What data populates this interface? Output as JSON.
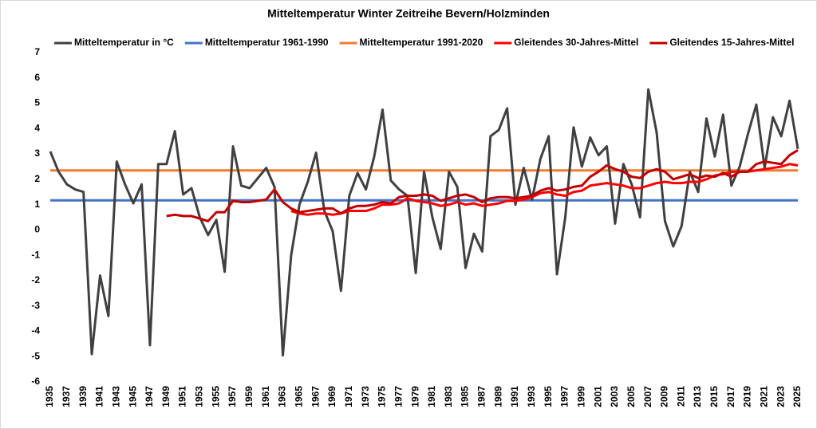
{
  "chart_data": {
    "type": "line",
    "title": "Mitteltemperatur Winter Zeitreihe Bevern/Holzminden",
    "x": [
      1935,
      1936,
      1937,
      1938,
      1939,
      1940,
      1941,
      1942,
      1943,
      1944,
      1945,
      1946,
      1947,
      1948,
      1949,
      1950,
      1951,
      1952,
      1953,
      1954,
      1955,
      1956,
      1957,
      1958,
      1959,
      1960,
      1961,
      1962,
      1963,
      1964,
      1965,
      1966,
      1967,
      1968,
      1969,
      1970,
      1971,
      1972,
      1973,
      1974,
      1975,
      1976,
      1977,
      1978,
      1979,
      1980,
      1981,
      1982,
      1983,
      1984,
      1985,
      1986,
      1987,
      1988,
      1989,
      1990,
      1991,
      1992,
      1993,
      1994,
      1995,
      1996,
      1997,
      1998,
      1999,
      2000,
      2001,
      2002,
      2003,
      2004,
      2005,
      2006,
      2007,
      2008,
      2009,
      2010,
      2011,
      2012,
      2013,
      2014,
      2015,
      2016,
      2017,
      2018,
      2019,
      2020,
      2021,
      2022,
      2023,
      2024,
      2025
    ],
    "xlim": [
      1935,
      2025
    ],
    "xticks": [
      1935,
      1937,
      1939,
      1941,
      1943,
      1945,
      1947,
      1949,
      1951,
      1953,
      1955,
      1957,
      1959,
      1961,
      1963,
      1965,
      1967,
      1969,
      1971,
      1973,
      1975,
      1977,
      1979,
      1981,
      1983,
      1985,
      1987,
      1989,
      1991,
      1993,
      1995,
      1997,
      1999,
      2001,
      2003,
      2005,
      2007,
      2009,
      2011,
      2013,
      2015,
      2017,
      2019,
      2021,
      2023,
      2025
    ],
    "ylim": [
      -6,
      7
    ],
    "yticks": [
      -6,
      -5,
      -4,
      -3,
      -2,
      -1,
      0,
      1,
      2,
      3,
      4,
      5,
      6,
      7
    ],
    "series": [
      {
        "name": "Mitteltemperatur in °C",
        "color": "#404040",
        "values": [
          3.1,
          2.3,
          1.8,
          1.6,
          1.5,
          -4.9,
          -1.8,
          -3.4,
          2.7,
          1.8,
          1.05,
          1.8,
          -4.55,
          2.6,
          2.6,
          3.9,
          1.4,
          1.65,
          0.5,
          -0.2,
          0.4,
          -1.65,
          3.3,
          1.75,
          1.65,
          2.05,
          2.45,
          1.7,
          -4.95,
          -1.0,
          1.0,
          1.9,
          3.05,
          0.75,
          -0.05,
          -2.4,
          1.35,
          2.25,
          1.6,
          2.9,
          4.75,
          1.95,
          1.6,
          1.35,
          -1.7,
          2.3,
          0.5,
          -0.75,
          2.3,
          1.7,
          -1.5,
          -0.15,
          -0.85,
          3.7,
          3.95,
          4.8,
          1.0,
          2.45,
          1.2,
          2.8,
          3.7,
          -1.75,
          0.5,
          4.05,
          2.5,
          3.65,
          2.95,
          3.3,
          0.25,
          2.6,
          1.8,
          0.5,
          5.55,
          3.85,
          0.35,
          -0.65,
          0.15,
          2.3,
          1.5,
          4.4,
          2.9,
          4.55,
          1.75,
          2.5,
          3.8,
          4.95,
          2.45,
          4.45,
          3.7,
          5.1,
          3.2
        ]
      },
      {
        "name": "Mitteltemperatur 1961-1990",
        "color": "#4472c4",
        "value": 1.17
      },
      {
        "name": "Mitteltemperatur 1991-2020",
        "color": "#ed7d31",
        "value": 2.35
      },
      {
        "name": "Gleitendes 30-Jahres-Mittel",
        "color": "#ff0000",
        "values": [
          null,
          null,
          null,
          null,
          null,
          null,
          null,
          null,
          null,
          null,
          null,
          null,
          null,
          null,
          null,
          null,
          null,
          null,
          null,
          null,
          null,
          null,
          null,
          null,
          null,
          null,
          null,
          null,
          null,
          0.75,
          0.65,
          0.6,
          0.65,
          0.65,
          0.6,
          0.65,
          0.75,
          0.75,
          0.75,
          0.85,
          1.0,
          1.0,
          1.05,
          1.25,
          1.15,
          1.1,
          1.05,
          0.95,
          1.0,
          1.1,
          1.0,
          1.05,
          0.95,
          1.0,
          1.05,
          1.15,
          1.15,
          1.2,
          1.3,
          1.45,
          1.5,
          1.4,
          1.35,
          1.5,
          1.55,
          1.75,
          1.8,
          1.85,
          1.8,
          1.75,
          1.65,
          1.65,
          1.75,
          1.85,
          1.9,
          1.85,
          1.85,
          1.9,
          1.9,
          2.0,
          2.15,
          2.2,
          2.3,
          2.3,
          2.3,
          2.35,
          2.4,
          2.45,
          2.5,
          2.6,
          2.55
        ]
      },
      {
        "name": "Gleitendes 15-Jahres-Mittel",
        "color": "#c00000",
        "values": [
          null,
          null,
          null,
          null,
          null,
          null,
          null,
          null,
          null,
          null,
          null,
          null,
          null,
          null,
          0.55,
          0.6,
          0.55,
          0.55,
          0.45,
          0.35,
          0.7,
          0.7,
          1.15,
          1.1,
          1.1,
          1.15,
          1.2,
          1.6,
          1.1,
          0.85,
          0.7,
          0.75,
          0.8,
          0.85,
          0.85,
          0.65,
          0.85,
          0.95,
          0.95,
          1.0,
          1.1,
          1.05,
          1.3,
          1.35,
          1.35,
          1.4,
          1.35,
          1.15,
          1.25,
          1.35,
          1.4,
          1.3,
          1.1,
          1.25,
          1.3,
          1.3,
          1.25,
          1.3,
          1.35,
          1.55,
          1.65,
          1.55,
          1.6,
          1.7,
          1.75,
          2.1,
          2.3,
          2.55,
          2.4,
          2.3,
          2.1,
          2.05,
          2.3,
          2.4,
          2.3,
          2.0,
          2.1,
          2.2,
          2.05,
          2.15,
          2.1,
          2.25,
          2.1,
          2.3,
          2.3,
          2.6,
          2.7,
          2.65,
          2.6,
          2.95,
          3.15
        ]
      }
    ]
  }
}
